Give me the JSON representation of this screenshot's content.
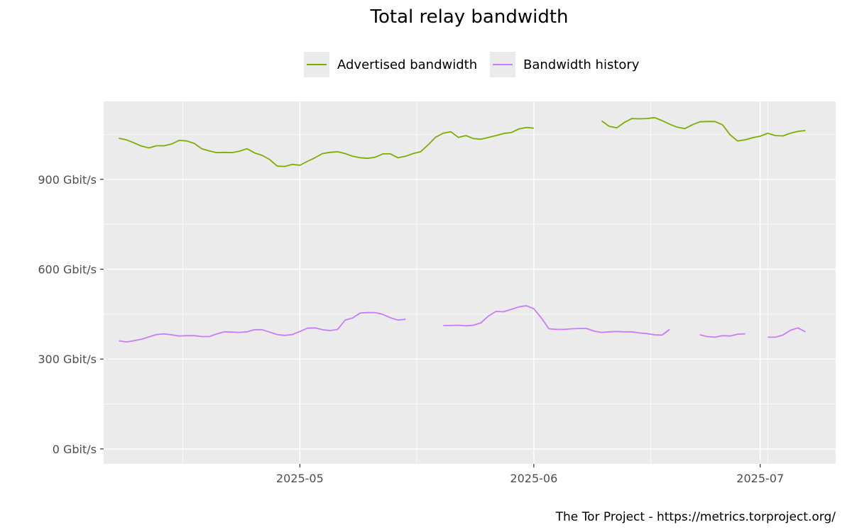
{
  "chart_data": {
    "type": "line",
    "title": "Total relay bandwidth",
    "caption": "The Tor Project - https://metrics.torproject.org/",
    "xlabel": "",
    "ylabel": "",
    "y_unit": "Gbit/s",
    "ylim": [
      -50,
      1160
    ],
    "xlim": [
      "2025-04-05",
      "2025-07-11"
    ],
    "grid": true,
    "legend_position": "top",
    "y_ticks": [
      {
        "value": 0,
        "label": "0 Gbit/s"
      },
      {
        "value": 300,
        "label": "300 Gbit/s"
      },
      {
        "value": 600,
        "label": "600 Gbit/s"
      },
      {
        "value": 900,
        "label": "900 Gbit/s"
      }
    ],
    "x_ticks": [
      {
        "value": "2025-05-01",
        "label": "2025-05"
      },
      {
        "value": "2025-06-01",
        "label": "2025-06"
      },
      {
        "value": "2025-07-01",
        "label": "2025-07"
      }
    ],
    "series": [
      {
        "name": "Advertised bandwidth",
        "color": "#7cae00",
        "points": [
          [
            "2025-04-07",
            1037
          ],
          [
            "2025-04-08",
            1032
          ],
          [
            "2025-04-09",
            1022
          ],
          [
            "2025-04-10",
            1011
          ],
          [
            "2025-04-11",
            1005
          ],
          [
            "2025-04-12",
            1012
          ],
          [
            "2025-04-13",
            1012
          ],
          [
            "2025-04-14",
            1018
          ],
          [
            "2025-04-15",
            1030
          ],
          [
            "2025-04-16",
            1028
          ],
          [
            "2025-04-17",
            1020
          ],
          [
            "2025-04-18",
            1002
          ],
          [
            "2025-04-19",
            995
          ],
          [
            "2025-04-20",
            989
          ],
          [
            "2025-04-21",
            990
          ],
          [
            "2025-04-22",
            989
          ],
          [
            "2025-04-23",
            994
          ],
          [
            "2025-04-24",
            1002
          ],
          [
            "2025-04-25",
            988
          ],
          [
            "2025-04-26",
            980
          ],
          [
            "2025-04-27",
            966
          ],
          [
            "2025-04-28",
            944
          ],
          [
            "2025-04-29",
            943
          ],
          [
            "2025-04-30",
            950
          ],
          [
            "2025-05-01",
            947
          ],
          [
            "2025-05-02",
            960
          ],
          [
            "2025-05-03",
            972
          ],
          [
            "2025-05-04",
            986
          ],
          [
            "2025-05-05",
            990
          ],
          [
            "2025-05-06",
            992
          ],
          [
            "2025-05-07",
            986
          ],
          [
            "2025-05-08",
            977
          ],
          [
            "2025-05-09",
            972
          ],
          [
            "2025-05-10",
            970
          ],
          [
            "2025-05-11",
            974
          ],
          [
            "2025-05-12",
            985
          ],
          [
            "2025-05-13",
            985
          ],
          [
            "2025-05-14",
            972
          ],
          [
            "2025-05-15",
            977
          ],
          [
            "2025-05-16",
            986
          ],
          [
            "2025-05-17",
            992
          ],
          [
            "2025-05-18",
            1015
          ],
          [
            "2025-05-19",
            1041
          ],
          [
            "2025-05-20",
            1054
          ],
          [
            "2025-05-21",
            1059
          ],
          [
            "2025-05-22",
            1040
          ],
          [
            "2025-05-23",
            1046
          ],
          [
            "2025-05-24",
            1036
          ],
          [
            "2025-05-25",
            1034
          ],
          [
            "2025-05-26",
            1040
          ],
          [
            "2025-05-27",
            1046
          ],
          [
            "2025-05-28",
            1053
          ],
          [
            "2025-05-29",
            1056
          ],
          [
            "2025-05-30",
            1068
          ],
          [
            "2025-05-31",
            1073
          ],
          [
            "2025-06-01",
            1071
          ],
          null,
          [
            "2025-06-10",
            1095
          ],
          [
            "2025-06-11",
            1077
          ],
          [
            "2025-06-12",
            1072
          ],
          [
            "2025-06-13",
            1090
          ],
          [
            "2025-06-14",
            1103
          ],
          [
            "2025-06-15",
            1102
          ],
          [
            "2025-06-16",
            1103
          ],
          [
            "2025-06-17",
            1106
          ],
          [
            "2025-06-18",
            1096
          ],
          [
            "2025-06-19",
            1084
          ],
          [
            "2025-06-20",
            1074
          ],
          [
            "2025-06-21",
            1069
          ],
          [
            "2025-06-22",
            1082
          ],
          [
            "2025-06-23",
            1092
          ],
          [
            "2025-06-24",
            1093
          ],
          [
            "2025-06-25",
            1093
          ],
          [
            "2025-06-26",
            1082
          ],
          [
            "2025-06-27",
            1049
          ],
          [
            "2025-06-28",
            1028
          ],
          [
            "2025-06-29",
            1032
          ],
          [
            "2025-06-30",
            1039
          ],
          [
            "2025-07-01",
            1044
          ],
          [
            "2025-07-02",
            1054
          ],
          [
            "2025-07-03",
            1046
          ],
          [
            "2025-07-04",
            1045
          ],
          [
            "2025-07-05",
            1054
          ],
          [
            "2025-07-06",
            1060
          ],
          [
            "2025-07-07",
            1063
          ]
        ]
      },
      {
        "name": "Bandwidth history",
        "color": "#c77cff",
        "points": [
          [
            "2025-04-07",
            361
          ],
          [
            "2025-04-08",
            357
          ],
          [
            "2025-04-09",
            361
          ],
          [
            "2025-04-10",
            366
          ],
          [
            "2025-04-11",
            374
          ],
          [
            "2025-04-12",
            382
          ],
          [
            "2025-04-13",
            384
          ],
          [
            "2025-04-14",
            381
          ],
          [
            "2025-04-15",
            377
          ],
          [
            "2025-04-16",
            378
          ],
          [
            "2025-04-17",
            378
          ],
          [
            "2025-04-18",
            375
          ],
          [
            "2025-04-19",
            375
          ],
          [
            "2025-04-20",
            384
          ],
          [
            "2025-04-21",
            391
          ],
          [
            "2025-04-22",
            390
          ],
          [
            "2025-04-23",
            389
          ],
          [
            "2025-04-24",
            391
          ],
          [
            "2025-04-25",
            398
          ],
          [
            "2025-04-26",
            398
          ],
          [
            "2025-04-27",
            390
          ],
          [
            "2025-04-28",
            382
          ],
          [
            "2025-04-29",
            379
          ],
          [
            "2025-04-30",
            382
          ],
          [
            "2025-05-01",
            392
          ],
          [
            "2025-05-02",
            403
          ],
          [
            "2025-05-03",
            404
          ],
          [
            "2025-05-04",
            398
          ],
          [
            "2025-05-05",
            395
          ],
          [
            "2025-05-06",
            399
          ],
          [
            "2025-05-07",
            430
          ],
          [
            "2025-05-08",
            437
          ],
          [
            "2025-05-09",
            454
          ],
          [
            "2025-05-10",
            455
          ],
          [
            "2025-05-11",
            455
          ],
          [
            "2025-05-12",
            449
          ],
          [
            "2025-05-13",
            438
          ],
          [
            "2025-05-14",
            430
          ],
          [
            "2025-05-15",
            433
          ],
          null,
          [
            "2025-05-20",
            412
          ],
          [
            "2025-05-21",
            412
          ],
          [
            "2025-05-22",
            413
          ],
          [
            "2025-05-23",
            411
          ],
          [
            "2025-05-24",
            413
          ],
          [
            "2025-05-25",
            421
          ],
          [
            "2025-05-26",
            444
          ],
          [
            "2025-05-27",
            459
          ],
          [
            "2025-05-28",
            458
          ],
          [
            "2025-05-29",
            466
          ],
          [
            "2025-05-30",
            474
          ],
          [
            "2025-05-31",
            478
          ],
          [
            "2025-06-01",
            468
          ],
          [
            "2025-06-02",
            437
          ],
          [
            "2025-06-03",
            401
          ],
          [
            "2025-06-04",
            399
          ],
          [
            "2025-06-05",
            399
          ],
          [
            "2025-06-06",
            401
          ],
          [
            "2025-06-07",
            402
          ],
          [
            "2025-06-08",
            402
          ],
          [
            "2025-06-09",
            393
          ],
          [
            "2025-06-10",
            389
          ],
          [
            "2025-06-11",
            391
          ],
          [
            "2025-06-12",
            392
          ],
          [
            "2025-06-13",
            391
          ],
          [
            "2025-06-14",
            391
          ],
          [
            "2025-06-15",
            387
          ],
          [
            "2025-06-16",
            385
          ],
          [
            "2025-06-17",
            381
          ],
          [
            "2025-06-18",
            380
          ],
          [
            "2025-06-19",
            399
          ],
          null,
          [
            "2025-06-23",
            381
          ],
          [
            "2025-06-24",
            375
          ],
          [
            "2025-06-25",
            373
          ],
          [
            "2025-06-26",
            378
          ],
          [
            "2025-06-27",
            377
          ],
          [
            "2025-06-28",
            383
          ],
          [
            "2025-06-29",
            384
          ],
          null,
          [
            "2025-07-02",
            373
          ],
          [
            "2025-07-03",
            373
          ],
          [
            "2025-07-04",
            380
          ],
          [
            "2025-07-05",
            396
          ],
          [
            "2025-07-06",
            404
          ],
          [
            "2025-07-07",
            391
          ]
        ]
      }
    ]
  }
}
